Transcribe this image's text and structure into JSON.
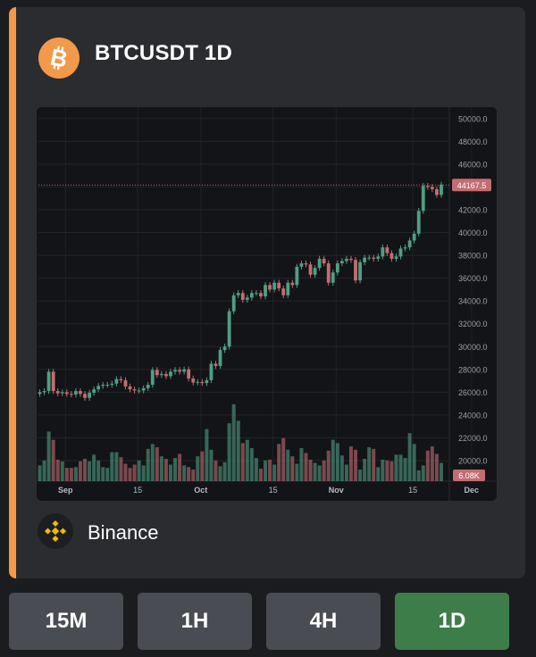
{
  "header": {
    "title": "BTCUSDT 1D",
    "coin_icon": "bitcoin-icon",
    "accent_color": "#f2994a"
  },
  "exchange": {
    "name": "Binance",
    "icon": "binance-icon"
  },
  "timeframes": [
    {
      "label": "15M",
      "active": false
    },
    {
      "label": "1H",
      "active": false
    },
    {
      "label": "4H",
      "active": false
    },
    {
      "label": "1D",
      "active": true
    }
  ],
  "colors": {
    "up": "#4f9f84",
    "down": "#c36d72",
    "active_button": "#3d7d4a"
  },
  "chart_data": {
    "type": "candlestick",
    "symbol": "BTCUSDT",
    "interval": "1D",
    "x_ticks": [
      "Sep",
      "15",
      "Oct",
      "15",
      "Nov",
      "15",
      "Dec"
    ],
    "y_ticks": [
      "50000.0",
      "48000.0",
      "46000.0",
      "44000.0",
      "42000.0",
      "40000.0",
      "38000.0",
      "36000.0",
      "34000.0",
      "32000.0",
      "30000.0",
      "28000.0",
      "26000.0",
      "24000.0",
      "22000.0",
      "20000.0"
    ],
    "ylim": [
      18200,
      51000
    ],
    "last_price_label": "44167.5",
    "last_price": 44167.5,
    "volume_label": "6.08K",
    "closes": [
      26000,
      26100,
      27800,
      26100,
      25900,
      26000,
      25850,
      25800,
      26100,
      25850,
      25500,
      25950,
      26250,
      26550,
      26650,
      26650,
      26750,
      27150,
      27050,
      26500,
      26250,
      26150,
      26150,
      26350,
      26650,
      27950,
      27500,
      27600,
      27400,
      27800,
      27950,
      27800,
      28000,
      27200,
      26850,
      26900,
      26800,
      27050,
      28500,
      28300,
      29700,
      30000,
      33100,
      34500,
      34700,
      34100,
      34300,
      34700,
      34700,
      34400,
      35400,
      35000,
      35600,
      35100,
      34500,
      35600,
      35400,
      37000,
      37300,
      37200,
      36300,
      36900,
      37700,
      37300,
      35600,
      36500,
      37300,
      37500,
      37700,
      37600,
      35800,
      37400,
      37800,
      37800,
      37700,
      37900,
      38700,
      38200,
      37700,
      37900,
      38600,
      38700,
      39300,
      39900,
      41900,
      44100,
      44000,
      43800,
      43300,
      44200
    ],
    "volumes": [
      1.9,
      2.5,
      6.0,
      5.0,
      2.6,
      2.4,
      1.6,
      1.6,
      1.7,
      2.4,
      2.7,
      2.4,
      3.2,
      2.5,
      1.7,
      1.6,
      3.5,
      3.5,
      2.9,
      2.1,
      1.6,
      2.0,
      2.5,
      1.9,
      3.9,
      4.5,
      4.1,
      3.0,
      2.7,
      2.0,
      2.8,
      3.3,
      1.9,
      1.7,
      1.4,
      3.0,
      3.6,
      6.3,
      3.8,
      2.5,
      1.8,
      2.3,
      7.0,
      9.3,
      7.3,
      4.6,
      5.0,
      4.0,
      2.8,
      1.5,
      2.5,
      2.6,
      2.0,
      4.5,
      5.2,
      3.8,
      3.0,
      2.1,
      4.0,
      3.4,
      2.6,
      2.2,
      1.9,
      2.5,
      3.7,
      5.0,
      4.6,
      3.1,
      2.0,
      4.2,
      3.8,
      1.4,
      2.7,
      4.1,
      3.9,
      1.7,
      2.6,
      2.5,
      2.4,
      3.2,
      3.2,
      2.8,
      5.8,
      4.5,
      1.3,
      1.9,
      3.7,
      4.2,
      3.3,
      2.2
    ]
  }
}
